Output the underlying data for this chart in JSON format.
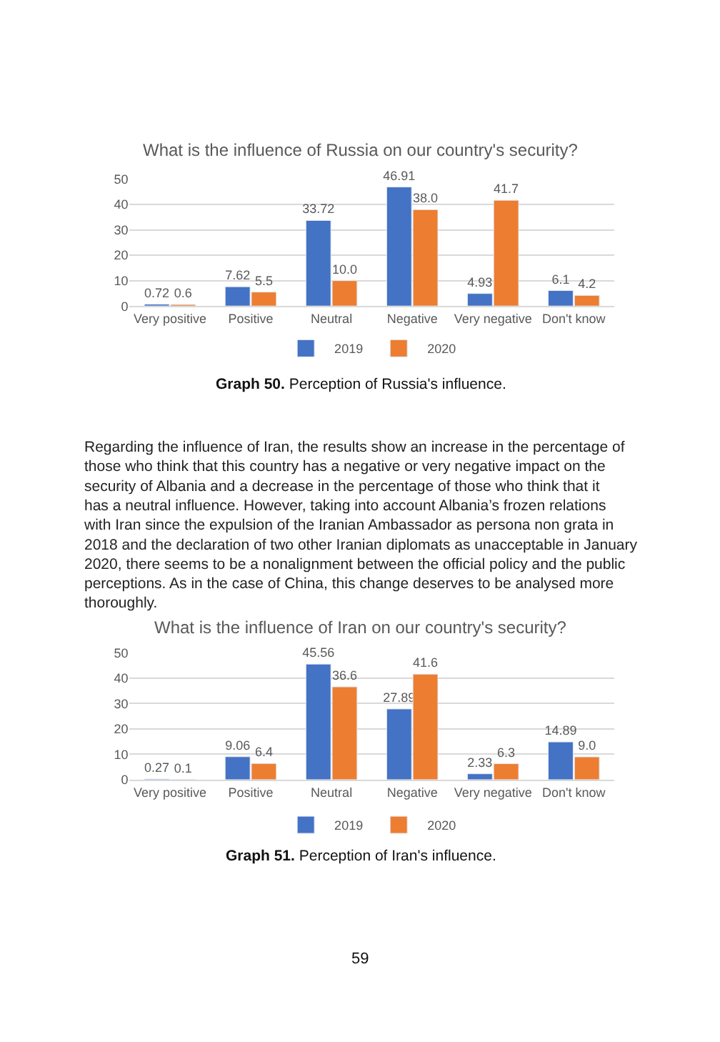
{
  "chart_data": [
    {
      "type": "bar",
      "title": "What is the influence of Russia on our country's security?",
      "categories": [
        "Very positive",
        "Positive",
        "Neutral",
        "Negative",
        "Very negative",
        "Don't know"
      ],
      "ylim": [
        0,
        50
      ],
      "yticks": [
        0,
        10,
        20,
        30,
        40,
        50
      ],
      "grid": "y",
      "legend": "bottom",
      "series": [
        {
          "name": "2019",
          "color": "#4472c4",
          "values": [
            0.72,
            7.62,
            33.72,
            46.91,
            4.93,
            6.1
          ],
          "value_labels": [
            "0.72",
            "7.62",
            "33.72",
            "46.91",
            "4.93",
            "6.1"
          ]
        },
        {
          "name": "2020",
          "color": "#ed7d31",
          "values": [
            0.6,
            5.5,
            10.0,
            38.0,
            41.7,
            4.2
          ],
          "value_labels": [
            "0.6",
            "5.5",
            "10.0",
            "38.0",
            "41.7",
            "4.2"
          ]
        }
      ],
      "annotations": [
        "Graph 50. Perception of Russia's influence."
      ]
    },
    {
      "type": "other",
      "annotations": [
        "Regarding the influence of Iran, the results show an increase in the percentage of those who think that this country has a negative or very negative impact on the security of Albania and a decrease in the percentage of those who think that it has a neutral influence. However, taking into account Albania’s frozen relations with Iran since the expulsion of the Iranian Ambassador as persona non grata in 2018 and the declaration of two other Iranian diplomats as unacceptable in January 2020, there seems to be a nonalignment between the official policy and the public perceptions. As in the case of China, this change deserves to be analysed more thoroughly."
      ]
    },
    {
      "type": "bar",
      "title": "What is the influence of Iran on our country's security?",
      "categories": [
        "Very positive",
        "Positive",
        "Neutral",
        "Negative",
        "Very negative",
        "Don't know"
      ],
      "ylim": [
        0,
        50
      ],
      "yticks": [
        0,
        10,
        20,
        30,
        40,
        50
      ],
      "grid": "y",
      "legend": "bottom",
      "series": [
        {
          "name": "2019",
          "color": "#4472c4",
          "values": [
            0.27,
            9.06,
            45.56,
            27.89,
            2.33,
            14.89
          ],
          "value_labels": [
            "0.27",
            "9.06",
            "45.56",
            "27.89",
            "2.33",
            "14.89"
          ]
        },
        {
          "name": "2020",
          "color": "#ed7d31",
          "values": [
            0.1,
            6.4,
            36.6,
            41.6,
            6.3,
            9.0
          ],
          "value_labels": [
            "0.1",
            "6.4",
            "36.6",
            "41.6",
            "6.3",
            "9.0"
          ]
        }
      ],
      "annotations": [
        "Graph 51. Perception of Iran's influence.",
        "59"
      ]
    }
  ]
}
